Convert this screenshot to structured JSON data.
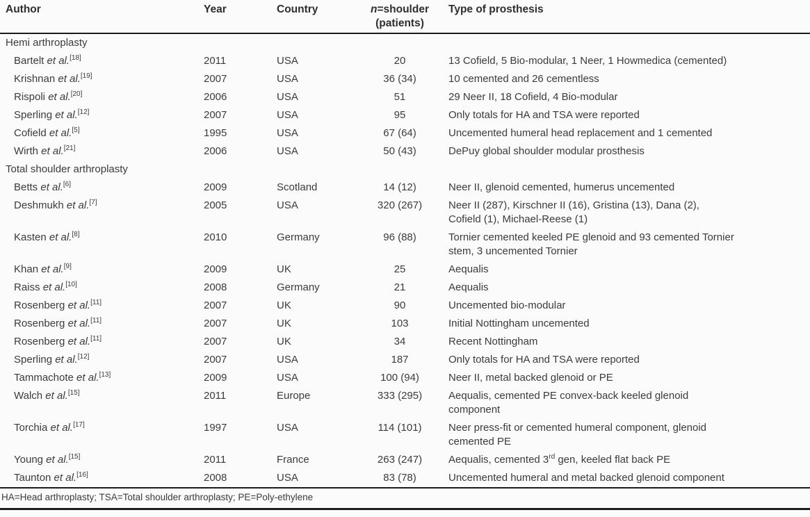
{
  "header": {
    "author": "Author",
    "year": "Year",
    "country": "Country",
    "n_italic": "n",
    "n_rest": "=shoulder",
    "n_line2": "(patients)",
    "type": "Type of prosthesis"
  },
  "sections": [
    {
      "title": "Hemi arthroplasty",
      "rows": [
        {
          "author": "Bartelt",
          "etal": "et al.",
          "ref": "[18]",
          "year": "2011",
          "country": "USA",
          "n": "20",
          "type": "13 Cofield, 5 Bio-modular, 1 Neer, 1 Howmedica (cemented)"
        },
        {
          "author": "Krishnan",
          "etal": "et al.",
          "ref": "[19]",
          "year": "2007",
          "country": "USA",
          "n": "36 (34)",
          "type": "10 cemented and 26 cementless"
        },
        {
          "author": "Rispoli",
          "etal": "et al.",
          "ref": "[20]",
          "year": "2006",
          "country": "USA",
          "n": "51",
          "type": "29 Neer II, 18 Cofield, 4 Bio-modular"
        },
        {
          "author": "Sperling",
          "etal": "et al.",
          "ref": "[12]",
          "year": "2007",
          "country": "USA",
          "n": "95",
          "type": "Only totals for HA and TSA were reported"
        },
        {
          "author": "Cofield",
          "etal": "et al.",
          "ref": "[5]",
          "year": "1995",
          "country": "USA",
          "n": "67 (64)",
          "type": "Uncemented humeral head replacement and 1 cemented"
        },
        {
          "author": "Wirth",
          "etal": "et al.",
          "ref": "[21]",
          "year": "2006",
          "country": "USA",
          "n": "50 (43)",
          "type": "DePuy global shoulder modular prosthesis"
        }
      ]
    },
    {
      "title": "Total shoulder arthroplasty",
      "rows": [
        {
          "author": "Betts",
          "etal": "et al.",
          "ref": "[6]",
          "year": "2009",
          "country": "Scotland",
          "n": "14 (12)",
          "type": "Neer II, glenoid cemented, humerus uncemented"
        },
        {
          "author": "Deshmukh",
          "etal": "et al.",
          "ref": "[7]",
          "year": "2005",
          "country": "USA",
          "n": "320 (267)",
          "type": "Neer II (287), Kirschner II (16), Gristina (13), Dana (2),\nCofield (1), Michael-Reese (1)"
        },
        {
          "author": "Kasten",
          "etal": "et al.",
          "ref": "[8]",
          "year": "2010",
          "country": "Germany",
          "n": "96 (88)",
          "type": "Tornier cemented keeled PE glenoid and 93 cemented Tornier\nstem, 3 uncemented Tornier"
        },
        {
          "author": "Khan",
          "etal": "et al.",
          "ref": "[9]",
          "year": "2009",
          "country": "UK",
          "n": "25",
          "type": "Aequalis"
        },
        {
          "author": "Raiss",
          "etal": "et al.",
          "ref": "[10]",
          "year": "2008",
          "country": "Germany",
          "n": "21",
          "type": "Aequalis"
        },
        {
          "author": "Rosenberg",
          "etal": "et al.",
          "ref": "[11]",
          "year": "2007",
          "country": "UK",
          "n": "90",
          "type": "Uncemented bio-modular"
        },
        {
          "author": "Rosenberg",
          "etal": "et al.",
          "ref": "[11]",
          "year": "2007",
          "country": "UK",
          "n": "103",
          "type": "Initial Nottingham uncemented"
        },
        {
          "author": "Rosenberg",
          "etal": "et al.",
          "ref": "[11]",
          "year": "2007",
          "country": "UK",
          "n": "34",
          "type": "Recent Nottingham"
        },
        {
          "author": "Sperling",
          "etal": "et al.",
          "ref": "[12]",
          "year": "2007",
          "country": "USA",
          "n": "187",
          "type": "Only totals for HA and TSA were reported"
        },
        {
          "author": "Tammachote",
          "etal": "et al.",
          "ref": "[13]",
          "year": "2009",
          "country": "USA",
          "n": "100 (94)",
          "type": "Neer II, metal backed glenoid or PE"
        },
        {
          "author": "Walch",
          "etal": "et al.",
          "ref": "[15]",
          "year": "2011",
          "country": "Europe",
          "n": "333 (295)",
          "type": "Aequalis, cemented PE convex-back keeled glenoid\ncomponent"
        },
        {
          "author": "Torchia",
          "etal": "et al.",
          "ref": "[17]",
          "year": "1997",
          "country": "USA",
          "n": "114 (101)",
          "type": "Neer press-fit or cemented humeral component, glenoid\ncemented PE"
        },
        {
          "author": "Young",
          "etal": "et al.",
          "ref": "[15]",
          "year": "2011",
          "country": "France",
          "n": "263 (247)",
          "type_segments": [
            {
              "t": "Aequalis, cemented 3"
            },
            {
              "s": "rd"
            },
            {
              "t": " gen, keeled flat back PE"
            }
          ]
        },
        {
          "author": "Taunton",
          "etal": "et al.",
          "ref": "[16]",
          "year": "2008",
          "country": "USA",
          "n": "83 (78)",
          "type": "Uncemented humeral and metal backed glenoid component"
        }
      ]
    }
  ],
  "footnote": "HA=Head arthroplasty; TSA=Total shoulder arthroplasty; PE=Poly-ethylene",
  "colors": {
    "text": "#3b3b3b",
    "rule": "#1c1c1c",
    "background": "#fbfbfb"
  }
}
